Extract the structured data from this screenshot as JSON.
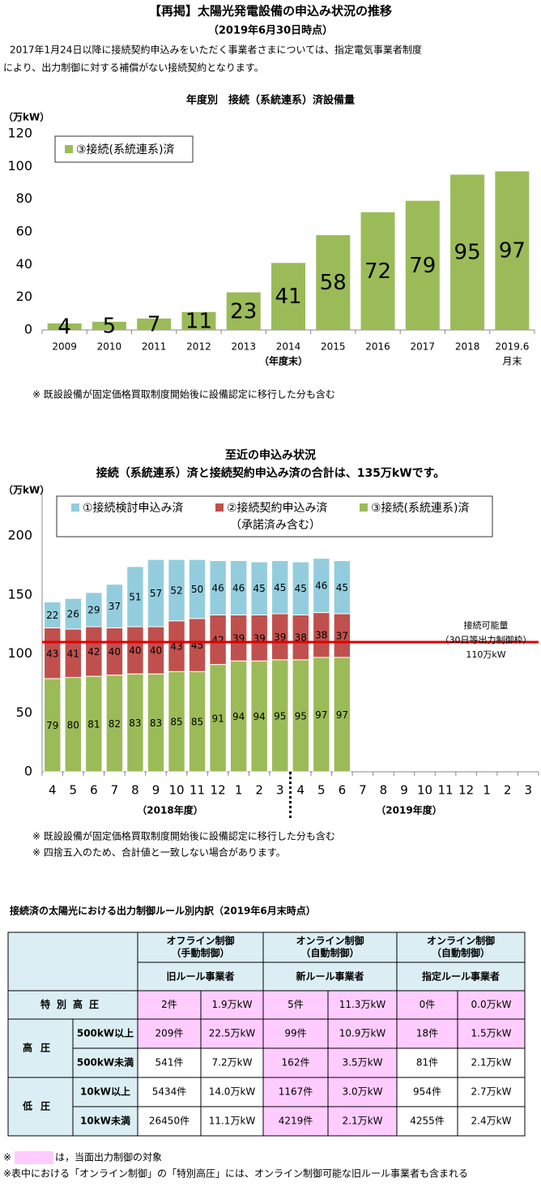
{
  "header": {
    "title": "【再掲】太陽光発電設備の申込み状況の推移",
    "date": "（2019年6月30日時点）",
    "note_lines": [
      "2017年1月24日以降に接続契約申込みをいただく事業者さまについては、指定電気事業者制度",
      "により、出力制御に対する補償がない接続契約となります。"
    ]
  },
  "chart_data": [
    {
      "type": "bar",
      "title": "年度別　接続（系統連系）済設備量",
      "unit": "（万kW）",
      "categories": [
        "2009",
        "2010",
        "2011",
        "2012",
        "2013",
        "2014",
        "2015",
        "2016",
        "2017",
        "2018",
        "2019.6"
      ],
      "x_label": "（年度末）",
      "last_category_suffix": "月末",
      "series": [
        {
          "name": "③接続(系統連系)済",
          "color": "#9bbb59",
          "values": [
            4,
            5,
            7,
            11,
            23,
            41,
            58,
            72,
            79,
            95,
            97
          ]
        }
      ],
      "ylim": [
        0,
        120
      ],
      "yticks": [
        0,
        20,
        40,
        60,
        80,
        100,
        120
      ],
      "notes": [
        "※ 既設設備が固定価格買取制度開始後に設備認定に移行した分も含む"
      ]
    },
    {
      "type": "bar",
      "stacked": true,
      "title_lines": [
        "至近の申込み状況",
        "接続（系統連系）済と接続契約申込み済の合計は、135万kWです。"
      ],
      "unit": "（万kW）",
      "categories": [
        "4",
        "5",
        "6",
        "7",
        "8",
        "9",
        "10",
        "11",
        "12",
        "1",
        "2",
        "3",
        "4",
        "5",
        "6",
        "7",
        "8",
        "9",
        "10",
        "11",
        "12",
        "1",
        "2",
        "3"
      ],
      "groups": [
        "（2018年度）",
        "（2019年度）"
      ],
      "series": [
        {
          "name": "①接続検討申込み済",
          "color": "#93cddd",
          "values": [
            22,
            26,
            29,
            37,
            51,
            57,
            52,
            50,
            46,
            46,
            45,
            45,
            45,
            46,
            45,
            null,
            null,
            null,
            null,
            null,
            null,
            null,
            null,
            null
          ]
        },
        {
          "name": "②接続契約申込み済",
          "note": "（承諾済み含む）",
          "color": "#c0504d",
          "values": [
            43,
            41,
            42,
            40,
            40,
            40,
            43,
            45,
            42,
            39,
            39,
            39,
            38,
            38,
            37,
            null,
            null,
            null,
            null,
            null,
            null,
            null,
            null,
            null
          ]
        },
        {
          "name": "③接続(系統連系)済",
          "color": "#9bbb59",
          "values": [
            79,
            80,
            81,
            82,
            83,
            83,
            85,
            85,
            91,
            94,
            94,
            95,
            95,
            97,
            97,
            null,
            null,
            null,
            null,
            null,
            null,
            null,
            null,
            null
          ]
        }
      ],
      "reference_line": {
        "value": 110,
        "color": "#e00000",
        "label_lines": [
          "接続可能量",
          "（30日等出力制御枠）",
          "110万kW"
        ]
      },
      "ylim": [
        0,
        200
      ],
      "yticks": [
        0,
        50,
        100,
        150,
        200
      ],
      "notes": [
        "※ 既設設備が固定価格買取制度開始後に設備認定に移行した分も含む",
        "※ 四捨五入のため、合計値と一致しない場合があります。"
      ]
    }
  ],
  "table": {
    "title": "接続済の太陽光における出力制御ルール別内訳（2019年6月末時点）",
    "groups": [
      {
        "lines": [
          "オフライン制御",
          "（手動制御）"
        ],
        "rule": "旧ルール事業者"
      },
      {
        "lines": [
          "オンライン制御",
          "（自動制御）"
        ],
        "rule": "新ルール事業者"
      },
      {
        "lines": [
          "オンライン制御",
          "（自動制御）"
        ],
        "rule": "指定ルール事業者"
      }
    ],
    "row_groups": [
      {
        "label": "特別高圧",
        "rows": [
          {
            "cells": [
              "2件",
              "1.9万kW",
              "5件",
              "11.3万kW",
              "0件",
              "0.0万kW"
            ]
          }
        ]
      },
      {
        "label": "高圧",
        "rows": [
          {
            "label": "500kW以上",
            "cells": [
              "209件",
              "22.5万kW",
              "99件",
              "10.9万kW",
              "18件",
              "1.5万kW"
            ]
          },
          {
            "label": "500kW未満",
            "cells": [
              "541件",
              "7.2万kW",
              "162件",
              "3.5万kW",
              "81件",
              "2.1万kW"
            ]
          }
        ]
      },
      {
        "label": "低圧",
        "rows": [
          {
            "label": "10kW以上",
            "cells": [
              "5434件",
              "14.0万kW",
              "1167件",
              "3.0万kW",
              "954件",
              "2.7万kW"
            ]
          },
          {
            "label": "10kW未満",
            "cells": [
              "26450件",
              "11.1万kW",
              "4219件",
              "2.1万kW",
              "4255件",
              "2.4万kW"
            ]
          }
        ]
      }
    ]
  },
  "footnotes": {
    "highlight_note": [
      "※",
      "は，当面出力制御の対象"
    ],
    "note": "※表中における「オンライン制御」の「特別高圧」には、オンライン制御可能な旧ルール事業者も含まれる"
  }
}
